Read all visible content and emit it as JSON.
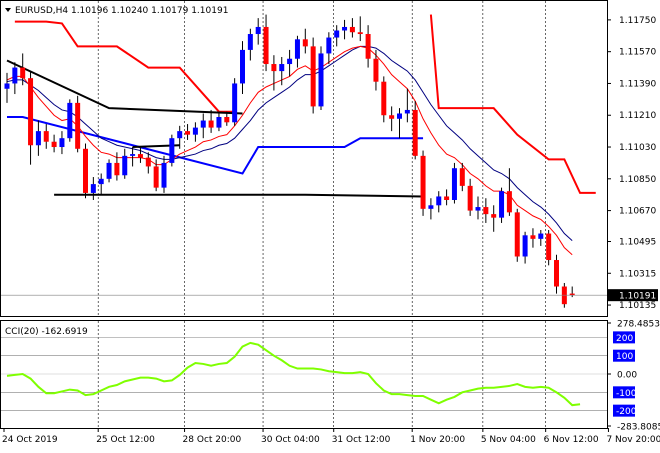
{
  "window": {
    "symbol_header": "EURUSD,H4  1.10196 1.10240 1.10179 1.10191"
  },
  "colors": {
    "bull": "#0000ff",
    "bear": "#ff0000",
    "candle_shadow": "#000000",
    "ma_fast": "#ff0000",
    "ma_slow": "#000080",
    "trend_red": "#ff0000",
    "trend_blue": "#0000ff",
    "trend_black": "#000000",
    "cci": "#7fff00",
    "cci_level_box": "#0000ff",
    "price_box": "#000000",
    "grid": "#000000"
  },
  "chart_data": [
    {
      "type": "candlestick",
      "title": "EURUSD,H4",
      "ohlc_header": "1.10196 1.10240 1.10179 1.10191",
      "current_price": "1.10191",
      "ylim": [
        1.1009,
        1.1184
      ],
      "y_ticks": [
        "1.11750",
        "1.11570",
        "1.11390",
        "1.11210",
        "1.11030",
        "1.10850",
        "1.10670",
        "1.10495",
        "1.10315",
        "1.10135"
      ],
      "x_ticks": [
        "24 Oct 2019",
        "25 Oct 12:00",
        "28 Oct 20:00",
        "30 Oct 04:00",
        "31 Oct 12:00",
        "1 Nov 20:00",
        "5 Nov 04:00",
        "6 Nov 12:00",
        "7 Nov 20:00"
      ],
      "candles": [
        {
          "o": 1.1136,
          "h": 1.1145,
          "l": 1.1128,
          "c": 1.1139
        },
        {
          "o": 1.1139,
          "h": 1.1151,
          "l": 1.1133,
          "c": 1.1148
        },
        {
          "o": 1.1148,
          "h": 1.1156,
          "l": 1.1138,
          "c": 1.1142
        },
        {
          "o": 1.1142,
          "h": 1.1146,
          "l": 1.1093,
          "c": 1.1104
        },
        {
          "o": 1.1104,
          "h": 1.1118,
          "l": 1.1098,
          "c": 1.1112
        },
        {
          "o": 1.1112,
          "h": 1.1116,
          "l": 1.1102,
          "c": 1.1106
        },
        {
          "o": 1.1106,
          "h": 1.111,
          "l": 1.11,
          "c": 1.1103
        },
        {
          "o": 1.1103,
          "h": 1.1112,
          "l": 1.1099,
          "c": 1.1108
        },
        {
          "o": 1.1108,
          "h": 1.113,
          "l": 1.1106,
          "c": 1.1128
        },
        {
          "o": 1.1128,
          "h": 1.1132,
          "l": 1.11,
          "c": 1.1102
        },
        {
          "o": 1.1102,
          "h": 1.1105,
          "l": 1.1074,
          "c": 1.1077
        },
        {
          "o": 1.1077,
          "h": 1.1086,
          "l": 1.1073,
          "c": 1.1082
        },
        {
          "o": 1.1082,
          "h": 1.1088,
          "l": 1.1076,
          "c": 1.1085
        },
        {
          "o": 1.1085,
          "h": 1.1096,
          "l": 1.1083,
          "c": 1.1094
        },
        {
          "o": 1.1094,
          "h": 1.11,
          "l": 1.1084,
          "c": 1.1087
        },
        {
          "o": 1.1087,
          "h": 1.1102,
          "l": 1.1085,
          "c": 1.1098
        },
        {
          "o": 1.1098,
          "h": 1.1103,
          "l": 1.1092,
          "c": 1.1099
        },
        {
          "o": 1.1099,
          "h": 1.1103,
          "l": 1.1094,
          "c": 1.1097
        },
        {
          "o": 1.1097,
          "h": 1.11,
          "l": 1.1088,
          "c": 1.1092
        },
        {
          "o": 1.1092,
          "h": 1.1096,
          "l": 1.1078,
          "c": 1.108
        },
        {
          "o": 1.108,
          "h": 1.1098,
          "l": 1.1077,
          "c": 1.1094
        },
        {
          "o": 1.1094,
          "h": 1.111,
          "l": 1.1092,
          "c": 1.1108
        },
        {
          "o": 1.1108,
          "h": 1.1115,
          "l": 1.1102,
          "c": 1.1112
        },
        {
          "o": 1.1112,
          "h": 1.1116,
          "l": 1.1107,
          "c": 1.111
        },
        {
          "o": 1.111,
          "h": 1.1117,
          "l": 1.1106,
          "c": 1.1114
        },
        {
          "o": 1.1114,
          "h": 1.1122,
          "l": 1.1108,
          "c": 1.1118
        },
        {
          "o": 1.1118,
          "h": 1.1124,
          "l": 1.1111,
          "c": 1.1114
        },
        {
          "o": 1.1114,
          "h": 1.1122,
          "l": 1.1112,
          "c": 1.112
        },
        {
          "o": 1.112,
          "h": 1.1123,
          "l": 1.1115,
          "c": 1.1117
        },
        {
          "o": 1.1117,
          "h": 1.1142,
          "l": 1.1115,
          "c": 1.1139
        },
        {
          "o": 1.1139,
          "h": 1.1163,
          "l": 1.1133,
          "c": 1.1158
        },
        {
          "o": 1.1158,
          "h": 1.117,
          "l": 1.1152,
          "c": 1.1167
        },
        {
          "o": 1.1167,
          "h": 1.1176,
          "l": 1.1161,
          "c": 1.1171
        },
        {
          "o": 1.1171,
          "h": 1.1178,
          "l": 1.1146,
          "c": 1.115
        },
        {
          "o": 1.115,
          "h": 1.1155,
          "l": 1.1135,
          "c": 1.1146
        },
        {
          "o": 1.1146,
          "h": 1.1154,
          "l": 1.1138,
          "c": 1.115
        },
        {
          "o": 1.115,
          "h": 1.1158,
          "l": 1.1143,
          "c": 1.1153
        },
        {
          "o": 1.1153,
          "h": 1.1166,
          "l": 1.1148,
          "c": 1.1164
        },
        {
          "o": 1.1164,
          "h": 1.117,
          "l": 1.1156,
          "c": 1.116
        },
        {
          "o": 1.116,
          "h": 1.1165,
          "l": 1.1122,
          "c": 1.1126
        },
        {
          "o": 1.1126,
          "h": 1.116,
          "l": 1.1124,
          "c": 1.1156
        },
        {
          "o": 1.1156,
          "h": 1.1168,
          "l": 1.115,
          "c": 1.1165
        },
        {
          "o": 1.1165,
          "h": 1.1172,
          "l": 1.116,
          "c": 1.1169
        },
        {
          "o": 1.1169,
          "h": 1.1175,
          "l": 1.1164,
          "c": 1.1171
        },
        {
          "o": 1.1171,
          "h": 1.1176,
          "l": 1.1165,
          "c": 1.1168
        },
        {
          "o": 1.1168,
          "h": 1.1177,
          "l": 1.1163,
          "c": 1.1167
        },
        {
          "o": 1.1167,
          "h": 1.1172,
          "l": 1.1148,
          "c": 1.1153
        },
        {
          "o": 1.1153,
          "h": 1.1158,
          "l": 1.1135,
          "c": 1.114
        },
        {
          "o": 1.114,
          "h": 1.1143,
          "l": 1.1117,
          "c": 1.1121
        },
        {
          "o": 1.1121,
          "h": 1.1126,
          "l": 1.1112,
          "c": 1.1119
        },
        {
          "o": 1.1119,
          "h": 1.1125,
          "l": 1.1108,
          "c": 1.1122
        },
        {
          "o": 1.1122,
          "h": 1.1136,
          "l": 1.1117,
          "c": 1.1124
        },
        {
          "o": 1.1124,
          "h": 1.1129,
          "l": 1.1096,
          "c": 1.1098
        },
        {
          "o": 1.1098,
          "h": 1.1101,
          "l": 1.1064,
          "c": 1.1068
        },
        {
          "o": 1.1068,
          "h": 1.1074,
          "l": 1.1062,
          "c": 1.107
        },
        {
          "o": 1.107,
          "h": 1.1078,
          "l": 1.1066,
          "c": 1.1075
        },
        {
          "o": 1.1075,
          "h": 1.1079,
          "l": 1.107,
          "c": 1.1073
        },
        {
          "o": 1.1073,
          "h": 1.1094,
          "l": 1.1071,
          "c": 1.1091
        },
        {
          "o": 1.1091,
          "h": 1.1094,
          "l": 1.1078,
          "c": 1.1081
        },
        {
          "o": 1.1081,
          "h": 1.1085,
          "l": 1.1064,
          "c": 1.1067
        },
        {
          "o": 1.1067,
          "h": 1.1075,
          "l": 1.1062,
          "c": 1.1069
        },
        {
          "o": 1.1069,
          "h": 1.1074,
          "l": 1.106,
          "c": 1.1065
        },
        {
          "o": 1.1065,
          "h": 1.107,
          "l": 1.1055,
          "c": 1.1063
        },
        {
          "o": 1.1063,
          "h": 1.108,
          "l": 1.106,
          "c": 1.1078
        },
        {
          "o": 1.1078,
          "h": 1.1091,
          "l": 1.1064,
          "c": 1.1066
        },
        {
          "o": 1.1066,
          "h": 1.1068,
          "l": 1.1038,
          "c": 1.1041
        },
        {
          "o": 1.1041,
          "h": 1.1055,
          "l": 1.1037,
          "c": 1.1053
        },
        {
          "o": 1.1053,
          "h": 1.1057,
          "l": 1.1046,
          "c": 1.1051
        },
        {
          "o": 1.1051,
          "h": 1.1056,
          "l": 1.1047,
          "c": 1.1054
        },
        {
          "o": 1.1054,
          "h": 1.1056,
          "l": 1.1036,
          "c": 1.1039
        },
        {
          "o": 1.1039,
          "h": 1.1042,
          "l": 1.102,
          "c": 1.1024
        },
        {
          "o": 1.1024,
          "h": 1.1026,
          "l": 1.1012,
          "c": 1.1014
        },
        {
          "o": 1.102,
          "h": 1.1024,
          "l": 1.1018,
          "c": 1.1019
        }
      ],
      "overlay_lines": {
        "ma_fast": [
          1.1141,
          1.1143,
          1.1143,
          1.1137,
          1.1131,
          1.1126,
          1.1121,
          1.1118,
          1.1119,
          1.1115,
          1.1109,
          1.1104,
          1.11,
          1.1099,
          1.1097,
          1.1097,
          1.1097,
          1.1097,
          1.1096,
          1.1093,
          1.1093,
          1.1096,
          1.1099,
          1.1101,
          1.1103,
          1.1106,
          1.1107,
          1.1109,
          1.111,
          1.1115,
          1.1121,
          1.1128,
          1.1134,
          1.1137,
          1.1139,
          1.1141,
          1.1143,
          1.1147,
          1.1149,
          1.1146,
          1.1148,
          1.1151,
          1.1154,
          1.1157,
          1.1159,
          1.116,
          1.1159,
          1.1155,
          1.115,
          1.1144,
          1.114,
          1.1136,
          1.1129,
          1.1119,
          1.1111,
          1.1104,
          1.1099,
          1.1097,
          1.1093,
          1.1088,
          1.1085,
          1.1081,
          1.1078,
          1.1078,
          1.1076,
          1.107,
          1.1067,
          1.1064,
          1.1062,
          1.1058,
          1.1053,
          1.1046,
          1.1042
        ],
        "ma_slow": [
          1.114,
          1.1141,
          1.1141,
          1.1138,
          1.1135,
          1.1131,
          1.1127,
          1.1124,
          1.1123,
          1.112,
          1.1116,
          1.1112,
          1.1108,
          1.1106,
          1.1104,
          1.1103,
          1.1102,
          1.1101,
          1.1099,
          1.1097,
          1.1096,
          1.1096,
          1.1097,
          1.1098,
          1.1099,
          1.1101,
          1.1102,
          1.1104,
          1.1105,
          1.1108,
          1.1113,
          1.1118,
          1.1124,
          1.1128,
          1.1131,
          1.1134,
          1.1137,
          1.1141,
          1.1144,
          1.1144,
          1.1146,
          1.1149,
          1.1152,
          1.1155,
          1.1158,
          1.116,
          1.116,
          1.1159,
          1.1156,
          1.1152,
          1.1149,
          1.1146,
          1.1141,
          1.1134,
          1.1127,
          1.1121,
          1.1115,
          1.1111,
          1.1107,
          1.1102,
          1.1098,
          1.1094,
          1.109,
          1.1088,
          1.1085,
          1.108,
          1.1076,
          1.1072,
          1.1069,
          1.1065,
          1.106,
          1.1054,
          1.105
        ]
      },
      "trend_lines": {
        "red_step": [
          [
            1,
            1.1174
          ],
          [
            5,
            1.1174
          ],
          [
            7,
            1.1173
          ],
          [
            9,
            1.116
          ],
          [
            14,
            1.116
          ],
          [
            18,
            1.1148
          ],
          [
            22,
            1.1148
          ],
          [
            27,
            1.1123
          ],
          [
            29,
            1.1123
          ],
          [
            31,
            null
          ],
          [
            54,
            1.1178
          ],
          [
            55,
            1.1125
          ],
          [
            62,
            1.1125
          ],
          [
            65,
            1.111
          ],
          [
            69,
            1.1096
          ],
          [
            71,
            1.1096
          ],
          [
            73,
            1.1077
          ],
          [
            75,
            1.1077
          ]
        ],
        "blue_step": [
          [
            0,
            1.112
          ],
          [
            2,
            1.112
          ],
          [
            30,
            1.1088
          ],
          [
            32,
            1.1103
          ],
          [
            43,
            1.1103
          ],
          [
            45,
            1.1108
          ],
          [
            53,
            1.1108
          ]
        ],
        "black_resist": [
          [
            0,
            1.1152
          ],
          [
            13,
            1.1125
          ],
          [
            30,
            1.1122
          ]
        ],
        "black_support": [
          [
            6,
            1.1076
          ],
          [
            23,
            1.1076
          ],
          [
            32,
            1.1076
          ],
          [
            38,
            1.1076
          ],
          [
            53,
            1.1075
          ]
        ],
        "black_short": [
          [
            16,
            1.1103
          ],
          [
            22,
            1.1104
          ]
        ]
      }
    },
    {
      "type": "line",
      "title": "CCI(20)",
      "current_value": "-162.6919",
      "header": "CCI(20) -162.6919",
      "ylim": [
        -283.8085,
        278.4853
      ],
      "y_ticks": [
        "278.4853",
        "200",
        "100",
        "0.00",
        "-100",
        "-200",
        "-283.8085"
      ],
      "levels": [
        200,
        100,
        0,
        -100,
        -200
      ],
      "values": [
        -10,
        -5,
        0,
        -25,
        -70,
        -105,
        -105,
        -95,
        -85,
        -90,
        -115,
        -110,
        -90,
        -70,
        -60,
        -40,
        -30,
        -20,
        -20,
        -25,
        -40,
        -35,
        -5,
        35,
        60,
        55,
        45,
        55,
        60,
        95,
        150,
        170,
        160,
        130,
        100,
        75,
        45,
        30,
        30,
        30,
        25,
        15,
        10,
        5,
        5,
        10,
        0,
        -50,
        -90,
        -110,
        -110,
        -115,
        -120,
        -120,
        -140,
        -160,
        -140,
        -125,
        -100,
        -90,
        -80,
        -75,
        -75,
        -70,
        -65,
        -55,
        -70,
        -75,
        -70,
        -75,
        -100,
        -130,
        -170,
        -165
      ]
    }
  ]
}
